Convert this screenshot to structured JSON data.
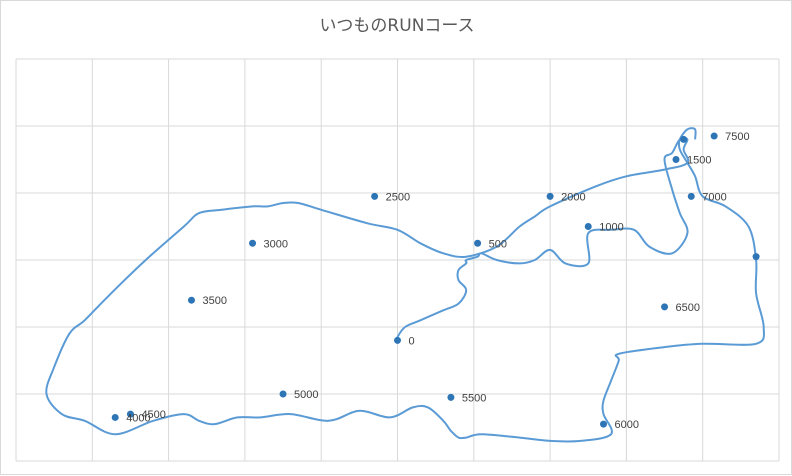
{
  "chart_data": {
    "type": "scatter",
    "title": "いつものRUNコース",
    "xlabel": "",
    "ylabel": "",
    "xlim": [
      0,
      10
    ],
    "ylim": [
      0,
      6
    ],
    "grid": true,
    "line_color": "#5b9bd5",
    "marker_color": "#2e75b6",
    "series": [
      {
        "style": "smoothed-line",
        "x": [
          5.0,
          5.0,
          5.1,
          5.3,
          5.6,
          5.8,
          5.9,
          5.8,
          5.8,
          5.9,
          5.9,
          6.05,
          6.1,
          6.3,
          6.6,
          6.8,
          7.0,
          7.2,
          7.5,
          7.5,
          7.8,
          8.1,
          8.3,
          8.6,
          8.8,
          8.7,
          8.6,
          8.5,
          8.6,
          8.7,
          8.8,
          8.75,
          8.8,
          8.5,
          8.0,
          7.6,
          7.0,
          6.8,
          6.6,
          6.3,
          5.9,
          5.6,
          5.3,
          5.0,
          4.6,
          4.0,
          3.7,
          3.5,
          3.3,
          3.1,
          2.7,
          2.4,
          2.2,
          1.7,
          1.2,
          0.9,
          0.7,
          0.5,
          0.4,
          0.6,
          0.9,
          1.3,
          1.8,
          2.2,
          2.4,
          2.6,
          2.9,
          3.2,
          3.6,
          4.1,
          4.5,
          4.9,
          5.2,
          5.4,
          5.6,
          5.7,
          5.8,
          5.9,
          6.1,
          6.6,
          7.0,
          7.4,
          7.8,
          7.7,
          7.7,
          7.8,
          7.9,
          7.9,
          8.5,
          9.0,
          9.7,
          9.8,
          9.7,
          9.7,
          9.6,
          9.3,
          9.0,
          8.9,
          8.8,
          8.7,
          8.7,
          8.8,
          8.9,
          8.9
        ],
        "y": [
          1.8,
          1.85,
          2.0,
          2.1,
          2.25,
          2.35,
          2.55,
          2.7,
          2.85,
          2.95,
          3.0,
          3.05,
          3.1,
          3.0,
          2.95,
          3.0,
          3.15,
          2.95,
          2.95,
          3.4,
          3.45,
          3.45,
          3.2,
          3.1,
          3.4,
          3.7,
          4.05,
          4.5,
          4.6,
          4.8,
          4.8,
          4.65,
          4.45,
          4.35,
          4.25,
          4.1,
          3.8,
          3.65,
          3.5,
          3.2,
          3.05,
          3.1,
          3.25,
          3.45,
          3.55,
          3.75,
          3.85,
          3.85,
          3.8,
          3.8,
          3.75,
          3.7,
          3.5,
          3.0,
          2.45,
          2.1,
          1.9,
          1.4,
          1.0,
          0.7,
          0.6,
          0.4,
          0.6,
          0.7,
          0.6,
          0.55,
          0.65,
          0.65,
          0.7,
          0.6,
          0.75,
          0.65,
          0.8,
          0.8,
          0.6,
          0.45,
          0.35,
          0.35,
          0.4,
          0.35,
          0.3,
          0.3,
          0.4,
          0.7,
          0.9,
          1.2,
          1.5,
          1.6,
          1.7,
          1.75,
          1.75,
          2.0,
          2.5,
          3.0,
          3.5,
          3.8,
          3.95,
          4.25,
          4.45,
          4.65,
          4.8,
          4.95,
          4.95,
          4.8
        ]
      },
      {
        "name": "markers",
        "x": [
          5.0,
          6.05,
          7.5,
          8.65,
          8.85,
          9.15,
          8.75,
          7.0,
          4.7,
          3.1,
          2.3,
          1.3,
          1.5,
          3.5,
          5.7,
          7.7,
          8.5,
          9.7
        ],
        "y": [
          1.8,
          3.25,
          3.5,
          4.5,
          3.95,
          4.85,
          4.8,
          3.95,
          3.95,
          3.25,
          2.4,
          0.65,
          0.7,
          1.0,
          0.95,
          0.55,
          2.3,
          3.05
        ],
        "labels": [
          "0",
          "500",
          "1000",
          "1500",
          "7000",
          "7500",
          "",
          "2000",
          "2500",
          "3000",
          "3500",
          "4000",
          "4500",
          "5000",
          "5500",
          "6000",
          "6500",
          ""
        ]
      }
    ]
  }
}
